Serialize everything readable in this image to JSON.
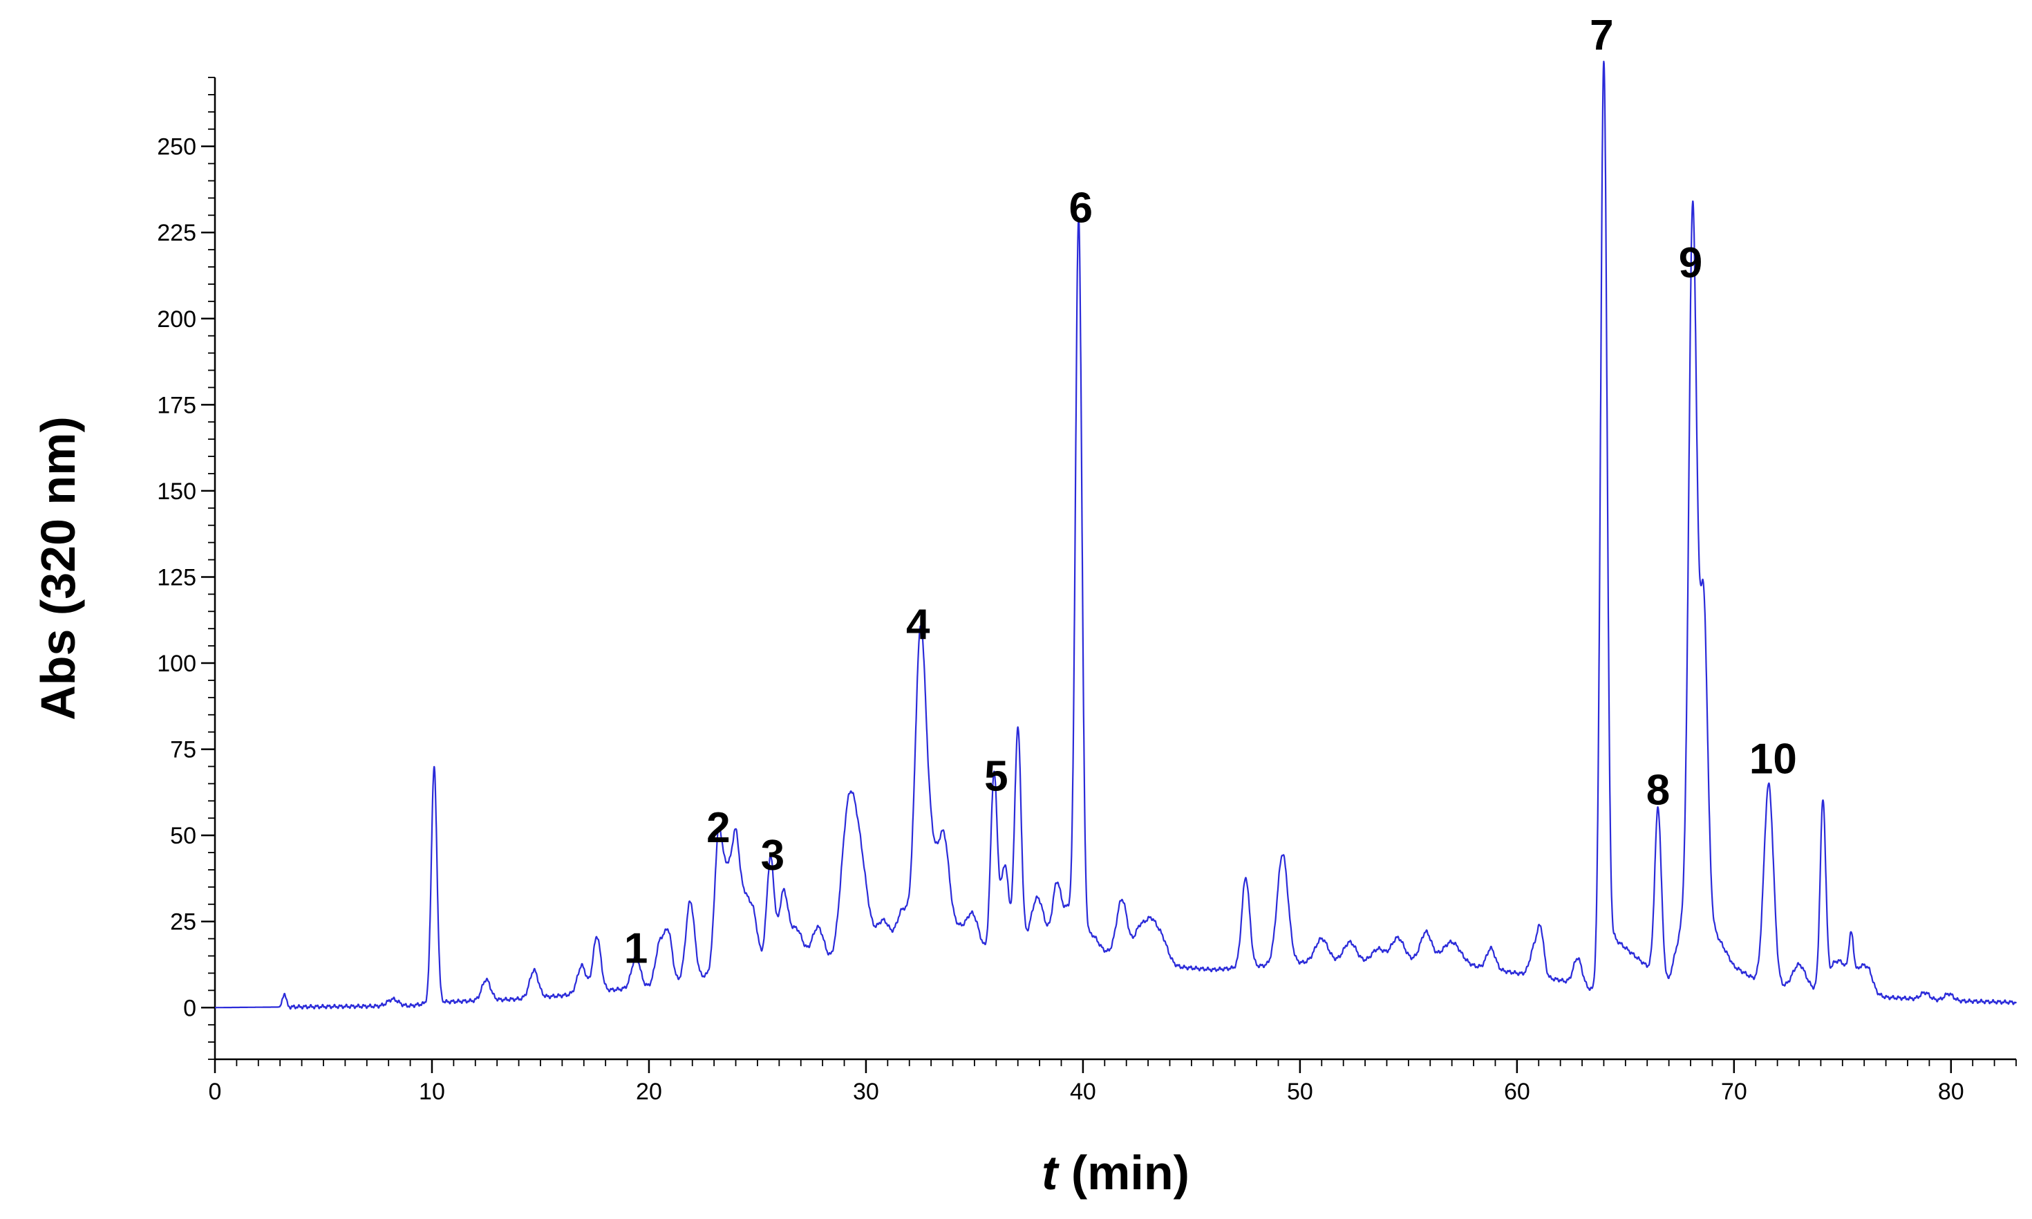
{
  "chart_data": {
    "type": "line",
    "xlabel_italic": "t",
    "xlabel_rest": " (min)",
    "ylabel": "Abs (320 nm)",
    "xlim": [
      0,
      83
    ],
    "ylim": [
      -15,
      270
    ],
    "x_ticks": [
      0,
      10,
      20,
      30,
      40,
      50,
      60,
      70,
      80
    ],
    "x_tick_labels": [
      "0",
      "10",
      "20",
      "30",
      "40",
      "50",
      "60",
      "70",
      "80"
    ],
    "y_ticks": [
      0,
      25,
      50,
      75,
      100,
      125,
      150,
      175,
      200,
      225,
      250
    ],
    "y_tick_labels": [
      "0",
      "25",
      "50",
      "75",
      "100",
      "125",
      "150",
      "175",
      "200",
      "225",
      "250"
    ],
    "grid": false,
    "series": [
      {
        "color": "#2b2bd9",
        "peaks": [
          [
            3.2,
            4,
            0.08
          ],
          [
            8.2,
            2,
            0.25
          ],
          [
            10.1,
            68,
            0.13
          ],
          [
            12.5,
            6,
            0.2
          ],
          [
            14.7,
            8,
            0.2
          ],
          [
            16.9,
            8,
            0.2
          ],
          [
            17.6,
            16,
            0.18
          ],
          [
            19.4,
            9,
            0.2
          ],
          [
            20.5,
            12,
            0.2
          ],
          [
            20.9,
            14,
            0.18
          ],
          [
            21.9,
            23,
            0.2
          ],
          [
            23.2,
            38,
            0.18
          ],
          [
            23.6,
            25,
            0.2
          ],
          [
            24.0,
            34,
            0.18
          ],
          [
            24.4,
            17,
            0.2
          ],
          [
            24.8,
            14,
            0.2
          ],
          [
            25.6,
            30,
            0.17
          ],
          [
            26.2,
            19,
            0.2
          ],
          [
            26.8,
            10,
            0.3
          ],
          [
            27.8,
            12,
            0.3
          ],
          [
            29.2,
            45,
            0.35
          ],
          [
            29.8,
            26,
            0.35
          ],
          [
            30.8,
            14,
            0.35
          ],
          [
            31.7,
            16,
            0.3
          ],
          [
            32.5,
            90,
            0.25
          ],
          [
            33.0,
            30,
            0.3
          ],
          [
            33.6,
            32,
            0.25
          ],
          [
            34.2,
            8,
            0.3
          ],
          [
            34.9,
            12,
            0.3
          ],
          [
            35.9,
            52,
            0.15
          ],
          [
            36.4,
            25,
            0.18
          ],
          [
            37.0,
            64,
            0.15
          ],
          [
            37.9,
            14,
            0.3
          ],
          [
            38.8,
            18,
            0.2
          ],
          [
            39.3,
            10,
            0.2
          ],
          [
            39.8,
            210,
            0.15
          ],
          [
            40.4,
            4,
            0.3
          ],
          [
            41.8,
            17,
            0.25
          ],
          [
            42.6,
            9,
            0.25
          ],
          [
            43.1,
            10,
            0.25
          ],
          [
            43.6,
            8,
            0.3
          ],
          [
            47.5,
            26,
            0.18
          ],
          [
            49.2,
            32,
            0.25
          ],
          [
            51.0,
            7,
            0.3
          ],
          [
            52.3,
            6,
            0.3
          ],
          [
            53.6,
            4,
            0.3
          ],
          [
            54.5,
            7,
            0.3
          ],
          [
            55.8,
            8,
            0.25
          ],
          [
            57.0,
            6,
            0.4
          ],
          [
            58.8,
            6,
            0.2
          ],
          [
            60.8,
            8,
            0.2
          ],
          [
            61.1,
            12,
            0.15
          ],
          [
            62.8,
            8,
            0.2
          ],
          [
            64.0,
            262,
            0.15
          ],
          [
            66.5,
            48,
            0.15
          ],
          [
            68.1,
            198,
            0.18
          ],
          [
            68.6,
            90,
            0.18
          ],
          [
            71.6,
            58,
            0.22
          ],
          [
            73.0,
            7,
            0.3
          ],
          [
            74.1,
            55,
            0.13
          ],
          [
            74.6,
            7,
            0.2
          ],
          [
            75.0,
            7,
            0.2
          ],
          [
            75.4,
            15,
            0.12
          ],
          [
            75.8,
            6,
            0.2
          ],
          [
            76.2,
            6,
            0.2
          ],
          [
            78.8,
            2,
            0.2
          ],
          [
            79.9,
            2,
            0.2
          ]
        ],
        "baseline_points": [
          [
            0,
            0
          ],
          [
            9,
            0.5
          ],
          [
            10,
            1.5
          ],
          [
            12,
            2
          ],
          [
            14,
            2.5
          ],
          [
            16,
            3.5
          ],
          [
            18,
            5
          ],
          [
            20,
            6
          ],
          [
            22,
            8
          ],
          [
            24,
            12
          ],
          [
            26,
            14
          ],
          [
            28,
            11
          ],
          [
            30,
            10
          ],
          [
            32,
            12
          ],
          [
            34,
            14
          ],
          [
            36,
            16
          ],
          [
            38,
            18
          ],
          [
            40,
            18
          ],
          [
            42,
            14
          ],
          [
            44,
            12
          ],
          [
            46,
            11
          ],
          [
            48,
            12
          ],
          [
            50,
            13
          ],
          [
            52,
            13
          ],
          [
            54,
            13
          ],
          [
            56,
            14
          ],
          [
            58,
            12
          ],
          [
            60,
            10
          ],
          [
            62,
            8
          ],
          [
            63.5,
            5
          ],
          [
            64.5,
            20
          ],
          [
            66,
            12
          ],
          [
            67,
            8
          ],
          [
            68,
            35
          ],
          [
            70,
            12
          ],
          [
            71,
            8
          ],
          [
            72,
            6
          ],
          [
            74,
            5
          ],
          [
            76,
            5
          ],
          [
            77,
            3
          ],
          [
            80,
            2
          ],
          [
            83,
            1.5
          ]
        ]
      }
    ],
    "annotations": [
      {
        "text": "1",
        "x": 19.4,
        "y": 13
      },
      {
        "text": "2",
        "x": 23.2,
        "y": 48
      },
      {
        "text": "3",
        "x": 25.7,
        "y": 40
      },
      {
        "text": "4",
        "x": 32.4,
        "y": 107
      },
      {
        "text": "5",
        "x": 36.0,
        "y": 63
      },
      {
        "text": "6",
        "x": 39.9,
        "y": 228
      },
      {
        "text": "7",
        "x": 63.9,
        "y": 278
      },
      {
        "text": "8",
        "x": 66.5,
        "y": 59
      },
      {
        "text": "9",
        "x": 68.0,
        "y": 212
      },
      {
        "text": "10",
        "x": 71.8,
        "y": 68
      }
    ]
  }
}
